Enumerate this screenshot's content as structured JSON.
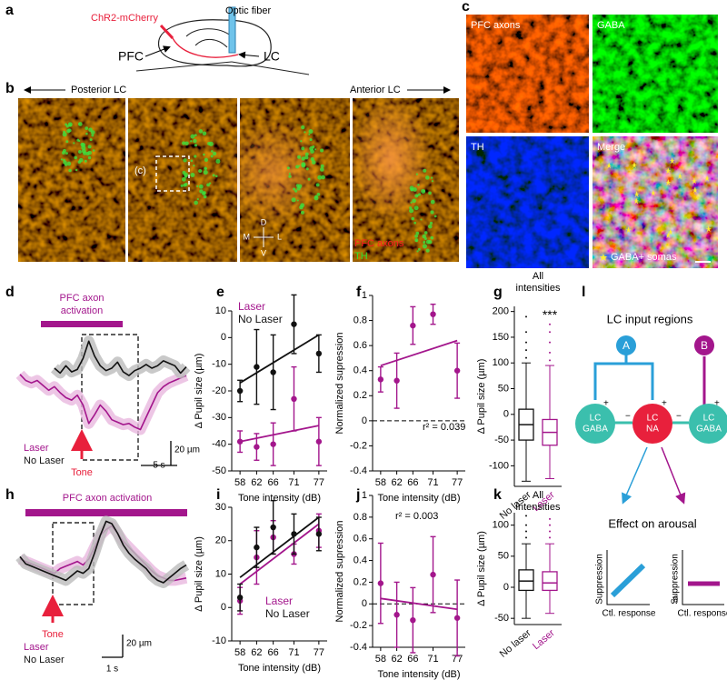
{
  "panel_labels": [
    "a",
    "b",
    "c",
    "d",
    "e",
    "f",
    "g",
    "h",
    "i",
    "j",
    "k",
    "l"
  ],
  "figure_a": {
    "virus": "ChR2-mCherry",
    "fiber": "Optic fiber",
    "pfc": "PFC",
    "lc": "LC"
  },
  "figure_b": {
    "left": "Posterior LC",
    "right": "Anterior LC",
    "inset": "(c)",
    "compass": [
      "D",
      "V",
      "M",
      "L"
    ],
    "legend": [
      "PFC axons",
      "TH"
    ]
  },
  "figure_c": {
    "tiles": [
      "PFC axons",
      "GABA",
      "TH",
      "Merge"
    ],
    "key": "GABA+ somas"
  },
  "figure_l": {
    "title": "LC input regions",
    "inputs": [
      "A",
      "B"
    ],
    "nodes": [
      [
        "LC",
        "GABA"
      ],
      [
        "LC",
        "NA"
      ],
      [
        "LC",
        "GABA"
      ]
    ],
    "signs": [
      "+",
      "+",
      "−",
      "−",
      "+"
    ],
    "subtitle": "Effect on arousal",
    "plot_ylabel": "Suppression",
    "plot_xlabel": "Ctl. response",
    "zero": "0"
  },
  "chart_data": [
    {
      "type": "trace",
      "bar_label_lines": [
        "PFC axon",
        "activation"
      ],
      "event_label": "Tone",
      "scale_y_label": "20 µm",
      "scale_x_label": "5 s",
      "series": [
        {
          "name": "Laser",
          "color": "#a3168c",
          "values": [
            -5,
            -10,
            -12,
            -10,
            -14,
            -18,
            -15,
            -20,
            -24,
            -26,
            -22,
            -30,
            -45,
            -38,
            -30,
            -35,
            -42,
            -44,
            -46,
            -45,
            -48,
            -50,
            -40,
            -30,
            -20,
            -15,
            -12,
            -10,
            -8,
            -6
          ]
        },
        {
          "name": "No Laser",
          "color": "#111111",
          "values": [
            null,
            null,
            null,
            null,
            null,
            null,
            0,
            -4,
            2,
            -3,
            -1,
            8,
            22,
            10,
            2,
            -2,
            0,
            5,
            -3,
            -6,
            -2,
            0,
            3,
            0,
            2,
            6,
            4,
            2,
            -4,
            1
          ]
        }
      ]
    },
    {
      "type": "scatter",
      "xlabel": "Tone intensity (dB)",
      "ylabel": "Δ Pupil size (µm)",
      "legend": "upper left",
      "x": [
        58,
        62,
        66,
        71,
        77
      ],
      "xlim": [
        56,
        79
      ],
      "xticks": [
        58,
        62,
        66,
        71,
        77
      ],
      "ylim": [
        -50,
        10
      ],
      "yticks": [
        -50,
        -40,
        -30,
        -20,
        -10,
        0,
        10
      ],
      "series": [
        {
          "name": "Laser",
          "color": "#a3168c",
          "values": [
            -39,
            -41,
            -40,
            -23,
            -39
          ],
          "errors": [
            4,
            5,
            8,
            12,
            9
          ],
          "fit": {
            "x": [
              58,
              77
            ],
            "values": [
              -39,
              -33
            ]
          }
        },
        {
          "name": "No Laser",
          "color": "#111111",
          "values": [
            -20,
            -11,
            -13,
            5,
            -6
          ],
          "errors": [
            4,
            14,
            14,
            11,
            7
          ],
          "fit": {
            "x": [
              58,
              77
            ],
            "values": [
              -17,
              1
            ]
          }
        }
      ]
    },
    {
      "type": "scatter",
      "xlabel": "Tone intensity (dB)",
      "ylabel": "Normalized supression",
      "annotation": "r² = 0.039",
      "hline": 0,
      "x": [
        58,
        62,
        66,
        71,
        77
      ],
      "xlim": [
        56,
        79
      ],
      "xticks": [
        58,
        62,
        66,
        71,
        77
      ],
      "ylim": [
        -0.4,
        1
      ],
      "yticks": [
        -0.4,
        -0.2,
        0,
        0.2,
        0.4,
        0.6,
        0.8,
        1
      ],
      "series": [
        {
          "color": "#a3168c",
          "values": [
            0.33,
            0.32,
            0.76,
            0.85,
            0.4
          ],
          "errors": [
            0.1,
            0.22,
            0.15,
            0.08,
            0.22
          ],
          "fit": {
            "x": [
              58,
              77
            ],
            "values": [
              0.44,
              0.64
            ]
          }
        }
      ]
    },
    {
      "type": "box",
      "ylabel": "Δ Pupil size (µm)",
      "title_lines": [
        "All",
        "intensities"
      ],
      "annotation": "***",
      "categories": [
        "No laser",
        "Laser"
      ],
      "colors": [
        "#111111",
        "#a3168c"
      ],
      "ylim": [
        -140,
        210
      ],
      "yticks": [
        -100,
        -50,
        0,
        50,
        100,
        150,
        200
      ],
      "boxes": [
        {
          "whislo": -130,
          "q1": -50,
          "med": -20,
          "q3": 10,
          "whishi": 100,
          "outliers": [
            110,
            125,
            140,
            160,
            190
          ]
        },
        {
          "whislo": -125,
          "q1": -60,
          "med": -35,
          "q3": -10,
          "whishi": 95,
          "outliers": [
            105,
            120,
            140,
            160,
            175
          ]
        }
      ]
    },
    {
      "type": "trace",
      "bar_label_lines": [
        "PFC axon activation"
      ],
      "event_label": "Tone",
      "scale_y_label": "20 µm",
      "scale_x_label": "1 s",
      "series": [
        {
          "name": "Laser",
          "color": "#a3168c",
          "values": [
            0,
            -2,
            -4,
            -6,
            -8,
            -10,
            -12,
            -8,
            -6,
            -4,
            -2,
            -5,
            0,
            10,
            20,
            25,
            28,
            22,
            15,
            10,
            5,
            0,
            -5,
            -10,
            -14,
            -16,
            -18,
            -18,
            -17,
            -16
          ]
        },
        {
          "name": "No Laser",
          "color": "#111111",
          "values": [
            2,
            -4,
            -6,
            -8,
            -10,
            -12,
            -14,
            -16,
            -18,
            -14,
            -10,
            -12,
            -8,
            5,
            20,
            32,
            30,
            22,
            12,
            5,
            0,
            -4,
            -8,
            -14,
            -18,
            -20,
            -16,
            -12,
            -8,
            -5
          ]
        }
      ]
    },
    {
      "type": "scatter",
      "xlabel": "Tone intensity (dB)",
      "ylabel": "Δ Pupil size (µm)",
      "legend": "lower right",
      "x": [
        58,
        62,
        66,
        71,
        77
      ],
      "xlim": [
        56,
        79
      ],
      "xticks": [
        58,
        62,
        66,
        71,
        77
      ],
      "ylim": [
        -10,
        30
      ],
      "yticks": [
        -10,
        0,
        10,
        20,
        30
      ],
      "series": [
        {
          "name": "Laser",
          "color": "#a3168c",
          "values": [
            2,
            15,
            21,
            16,
            23
          ],
          "errors": [
            4,
            8,
            5,
            3,
            5
          ],
          "fit": {
            "x": [
              58,
              77
            ],
            "values": [
              7,
              25
            ]
          }
        },
        {
          "name": "No Laser",
          "color": "#111111",
          "values": [
            3,
            18,
            24,
            22,
            22
          ],
          "errors": [
            4,
            6,
            8,
            6,
            5
          ],
          "fit": {
            "x": [
              58,
              77
            ],
            "values": [
              9,
              27
            ]
          }
        }
      ]
    },
    {
      "type": "scatter",
      "xlabel": "Tone intensity (dB)",
      "ylabel": "Normalized supression",
      "annotation": "r² = 0.003",
      "hline": 0,
      "x": [
        58,
        62,
        66,
        71,
        77
      ],
      "xlim": [
        56,
        79
      ],
      "xticks": [
        58,
        62,
        66,
        71,
        77
      ],
      "ylim": [
        -0.4,
        1
      ],
      "yticks": [
        -0.4,
        -0.2,
        0,
        0.2,
        0.4,
        0.6,
        0.8,
        1
      ],
      "series": [
        {
          "color": "#a3168c",
          "values": [
            0.19,
            -0.1,
            -0.15,
            0.27,
            -0.13
          ],
          "errors": [
            0.37,
            0.3,
            0.3,
            0.35,
            0.35
          ],
          "fit": {
            "x": [
              58,
              77
            ],
            "values": [
              0.05,
              -0.05
            ]
          }
        }
      ]
    },
    {
      "type": "box",
      "ylabel": "Δ Pupil size (µm)",
      "title_lines": [
        "All",
        "intensities"
      ],
      "categories": [
        "No laser",
        "Laser"
      ],
      "colors": [
        "#111111",
        "#a3168c"
      ],
      "ylim": [
        -60,
        120
      ],
      "yticks": [
        -50,
        0,
        50,
        100
      ],
      "boxes": [
        {
          "whislo": -50,
          "q1": -5,
          "med": 10,
          "q3": 28,
          "whishi": 70,
          "outliers": [
            80,
            90,
            100,
            115
          ]
        },
        {
          "whislo": -42,
          "q1": -5,
          "med": 7,
          "q3": 25,
          "whishi": 70,
          "outliers": [
            80,
            90,
            100,
            110
          ]
        }
      ]
    }
  ]
}
